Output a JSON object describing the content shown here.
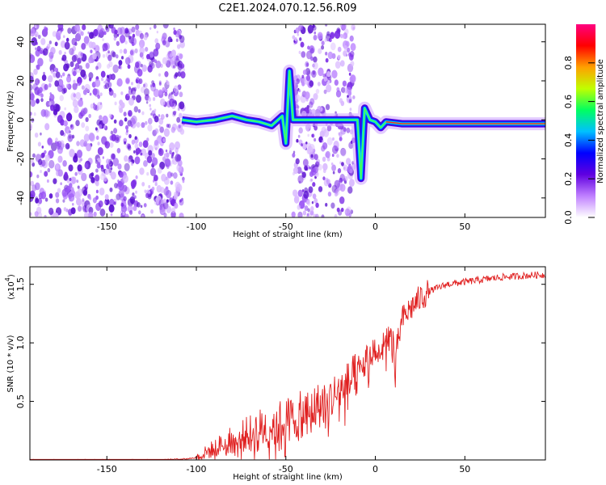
{
  "title": "C2E1.2024.070.12.56.R09",
  "colors": {
    "snr_line": "#e02020",
    "frame": "#000000",
    "background": "#ffffff"
  },
  "chart_data": [
    {
      "type": "heatmap",
      "xlabel": "Height of straight line (km)",
      "ylabel": "Frequency (Hz)",
      "xlim": [
        -193,
        95
      ],
      "ylim": [
        -50,
        49
      ],
      "xticks": [
        -150,
        -100,
        -50,
        0,
        50
      ],
      "yticks": [
        -40,
        -20,
        0,
        20,
        40
      ],
      "xtick_labels": [
        "-150",
        "-100",
        "-50",
        "0",
        "50"
      ],
      "ytick_labels": [
        "-40",
        "-20",
        "0",
        "20",
        "40"
      ],
      "colorbar": {
        "label": "Normalized spectral amplitude",
        "range": [
          0,
          1
        ],
        "ticks": [
          0.0,
          0.2,
          0.4,
          0.6,
          0.8
        ],
        "tick_labels": [
          "0.0",
          "0.2",
          "0.4",
          "0.6",
          "0.8"
        ],
        "colormap": [
          "#ffffff",
          "#c080ff",
          "#6000e0",
          "#0000ff",
          "#00c0ff",
          "#00ff60",
          "#c0ff00",
          "#ffa000",
          "#ff0000",
          "#ff0080"
        ]
      },
      "noise_regions": [
        [
          -193,
          -107
        ],
        [
          -46,
          -12
        ]
      ],
      "signal_trace": [
        {
          "x": -108,
          "y": 0
        },
        {
          "x": -100,
          "y": -1
        },
        {
          "x": -90,
          "y": 0
        },
        {
          "x": -80,
          "y": 2
        },
        {
          "x": -72,
          "y": 0
        },
        {
          "x": -65,
          "y": -1
        },
        {
          "x": -58,
          "y": -3
        },
        {
          "x": -52,
          "y": 2
        },
        {
          "x": -50,
          "y": -12
        },
        {
          "x": -48,
          "y": 25
        },
        {
          "x": -46,
          "y": 0
        },
        {
          "x": -10,
          "y": 0
        },
        {
          "x": -8,
          "y": -30
        },
        {
          "x": -6,
          "y": 6
        },
        {
          "x": -3,
          "y": 0
        },
        {
          "x": 0,
          "y": -1
        },
        {
          "x": 3,
          "y": -4
        },
        {
          "x": 6,
          "y": -1
        },
        {
          "x": 15,
          "y": -2
        },
        {
          "x": 40,
          "y": -2
        },
        {
          "x": 95,
          "y": -2
        }
      ]
    },
    {
      "type": "line",
      "xlabel": "Height of straight line (km)",
      "ylabel": "SNR (10 * v/v)",
      "y_multiplier": "(x10",
      "y_multiplier_exp": "4",
      "y_multiplier_close": ")",
      "xlim": [
        -193,
        95
      ],
      "ylim": [
        0,
        1.65
      ],
      "xticks": [
        -150,
        -100,
        -50,
        0,
        50
      ],
      "yticks": [
        0.5,
        1.0,
        1.5
      ],
      "xtick_labels": [
        "-150",
        "-100",
        "-50",
        "0",
        "50"
      ],
      "ytick_labels": [
        "0.5",
        "1.0",
        "1.5"
      ],
      "series": [
        {
          "x": [
            -193,
            -150,
            -120,
            -105,
            -100,
            -95,
            -90,
            -85,
            -80,
            -75,
            -70,
            -65,
            -60,
            -55,
            -50,
            -45,
            -40,
            -35,
            -30,
            -25,
            -20,
            -15,
            -10,
            -5,
            0,
            5,
            8,
            10,
            11,
            12,
            15,
            20,
            25,
            30,
            40,
            50,
            60,
            70,
            80,
            90,
            95
          ],
          "y": [
            0.0,
            0.0,
            0.0,
            0.01,
            0.02,
            0.06,
            0.1,
            0.14,
            0.17,
            0.2,
            0.23,
            0.26,
            0.29,
            0.31,
            0.34,
            0.37,
            0.4,
            0.44,
            0.48,
            0.53,
            0.58,
            0.65,
            0.74,
            0.85,
            0.95,
            1.02,
            1.03,
            1.05,
            0.65,
            0.95,
            1.2,
            1.3,
            1.38,
            1.44,
            1.5,
            1.52,
            1.54,
            1.56,
            1.57,
            1.58,
            1.58
          ]
        }
      ]
    }
  ]
}
